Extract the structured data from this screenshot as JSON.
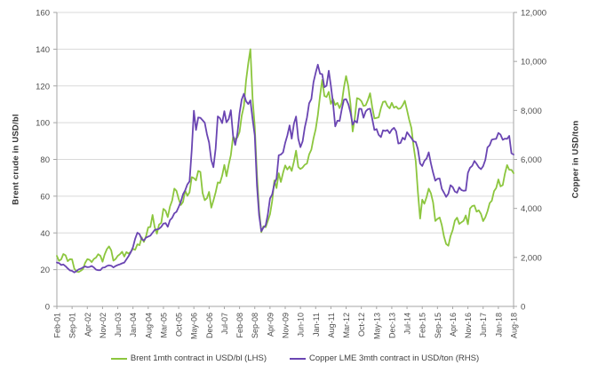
{
  "chart_data": {
    "type": "line",
    "title": "",
    "x_freq": "monthly",
    "x_start": "Feb-01",
    "x_end": "Aug-18",
    "x_tick_every": 7,
    "x_tick_labels": [
      "Feb-01",
      "Sep-01",
      "Apr-02",
      "Nov-02",
      "Jun-03",
      "Jan-04",
      "Aug-04",
      "Mar-05",
      "Oct-05",
      "May-06",
      "Dec-06",
      "Jul-07",
      "Feb-08",
      "Sep-08",
      "Apr-09",
      "Nov-09",
      "Jun-10",
      "Jan-11",
      "Aug-11",
      "Mar-12",
      "Oct-12",
      "May-13",
      "Dec-13",
      "Jul-14",
      "Feb-15",
      "Sep-15",
      "Apr-16",
      "Nov-16",
      "Jun-17",
      "Jan-18",
      "Aug-18"
    ],
    "grid": true,
    "legend_position": "bottom",
    "left_axis": {
      "label": "Brent crude in USD/bl",
      "min": 0,
      "max": 160,
      "tick_step": 20,
      "tick_labels": [
        "0",
        "20",
        "40",
        "60",
        "80",
        "100",
        "120",
        "140",
        "160"
      ]
    },
    "right_axis": {
      "label": "Copper in USD/ton",
      "min": 0,
      "max": 12000,
      "tick_step": 2000,
      "tick_labels": [
        "0",
        "2,000",
        "4,000",
        "6,000",
        "8,000",
        "10,000",
        "12,000"
      ]
    },
    "series": [
      {
        "name": "Brent 1mth contract in USD/bl (LHS)",
        "axis": "left",
        "color": "#8cc63e",
        "values": [
          27.5,
          24.8,
          25.6,
          28.5,
          27.8,
          24.6,
          25.7,
          25.6,
          20.6,
          19.0,
          18.7,
          19.4,
          20.3,
          23.7,
          25.7,
          25.4,
          24.1,
          25.8,
          26.6,
          28.4,
          27.5,
          24.3,
          28.3,
          31.2,
          32.7,
          30.5,
          24.9,
          25.8,
          27.5,
          28.4,
          29.8,
          27.1,
          29.6,
          28.7,
          29.8,
          31.3,
          30.8,
          33.8,
          33.3,
          37.6,
          35.1,
          38.3,
          43.0,
          43.2,
          49.8,
          43.1,
          39.6,
          44.5,
          45.5,
          53.1,
          52.0,
          48.6,
          54.4,
          57.5,
          64.1,
          62.9,
          58.5,
          55.2,
          56.9,
          63.1,
          60.2,
          62.1,
          70.4,
          69.8,
          68.6,
          73.7,
          73.2,
          61.7,
          57.8,
          58.9,
          62.3,
          53.7,
          57.6,
          62.1,
          67.5,
          67.2,
          71.1,
          77.0,
          70.8,
          77.2,
          82.3,
          92.4,
          90.9,
          92.0,
          95.0,
          103.7,
          109.1,
          122.8,
          132.3,
          140.0,
          113.0,
          98.1,
          71.9,
          52.5,
          40.4,
          43.6,
          43.1,
          46.5,
          50.2,
          57.3,
          68.6,
          64.4,
          72.5,
          67.7,
          72.8,
          76.7,
          74.5,
          76.2,
          73.7,
          78.8,
          84.8,
          75.9,
          74.8,
          75.6,
          77.1,
          77.8,
          82.7,
          85.3,
          91.4,
          96.5,
          104.0,
          114.6,
          123.3,
          114.5,
          114.0,
          116.8,
          110.2,
          112.8,
          109.6,
          110.8,
          107.9,
          110.7,
          119.3,
          125.4,
          119.8,
          110.3,
          95.2,
          102.6,
          113.4,
          112.9,
          111.7,
          109.1,
          109.5,
          112.3,
          116.0,
          108.5,
          102.3,
          102.6,
          102.9,
          107.9,
          111.3,
          111.6,
          109.1,
          107.8,
          110.8,
          108.1,
          108.8,
          107.5,
          107.8,
          109.5,
          111.9,
          106.8,
          101.6,
          97.1,
          87.4,
          79.0,
          62.3,
          47.8,
          58.1,
          55.9,
          59.5,
          64.1,
          61.5,
          56.6,
          46.5,
          47.6,
          48.4,
          44.3,
          38.0,
          34.0,
          33.0,
          38.2,
          41.6,
          46.7,
          48.3,
          44.9,
          45.8,
          46.6,
          49.5,
          44.7,
          53.3,
          54.6,
          54.9,
          51.6,
          52.3,
          50.3,
          46.4,
          48.5,
          51.7,
          56.2,
          57.5,
          62.7,
          64.4,
          69.1,
          65.3,
          66.0,
          72.1,
          76.9,
          74.4,
          74.3,
          72.5
        ]
      },
      {
        "name": "Copper LME 3mth contract in USD/ton (RHS)",
        "axis": "right",
        "color": "#6a45b2",
        "values": [
          1790,
          1770,
          1690,
          1710,
          1640,
          1550,
          1470,
          1450,
          1390,
          1440,
          1510,
          1540,
          1590,
          1630,
          1600,
          1610,
          1650,
          1590,
          1500,
          1480,
          1480,
          1580,
          1590,
          1650,
          1680,
          1660,
          1590,
          1650,
          1690,
          1720,
          1760,
          1790,
          1920,
          2060,
          2210,
          2420,
          2760,
          3010,
          2950,
          2740,
          2690,
          2810,
          2850,
          2890,
          3010,
          3120,
          3140,
          3170,
          3250,
          3380,
          3400,
          3250,
          3520,
          3610,
          3800,
          3860,
          4060,
          4270,
          4580,
          4740,
          4980,
          5100,
          6390,
          7990,
          7200,
          7710,
          7700,
          7600,
          7500,
          7030,
          6690,
          5970,
          5680,
          6450,
          7760,
          7680,
          7480,
          7970,
          7510,
          7650,
          8010,
          6970,
          6590,
          7060,
          7890,
          8440,
          8680,
          8380,
          8260,
          8410,
          7640,
          6990,
          4930,
          3720,
          3070,
          3220,
          3310,
          3750,
          4410,
          4570,
          5010,
          5220,
          6170,
          6200,
          6290,
          6680,
          6980,
          7390,
          6850,
          7460,
          7750,
          6840,
          6500,
          6740,
          7300,
          7710,
          8290,
          8460,
          9150,
          9540,
          9870,
          9500,
          9480,
          8950,
          9010,
          9620,
          9000,
          8300,
          7350,
          7580,
          7570,
          8040,
          8440,
          8460,
          8260,
          7920,
          7420,
          7580,
          7500,
          8070,
          8060,
          7700,
          7960,
          8050,
          8070,
          7660,
          7200,
          7240,
          7000,
          6910,
          7190,
          7160,
          7200,
          7070,
          7210,
          7290,
          7150,
          6650,
          6670,
          6890,
          6810,
          7110,
          6990,
          6870,
          6740,
          6710,
          6420,
          5830,
          5730,
          5940,
          6040,
          6290,
          5830,
          5460,
          5130,
          5210,
          5220,
          4800,
          4640,
          4470,
          4600,
          4950,
          4870,
          4690,
          4640,
          4860,
          4750,
          4720,
          4730,
          5450,
          5660,
          5740,
          5940,
          5820,
          5680,
          5600,
          5720,
          5980,
          6490,
          6580,
          6810,
          6830,
          6840,
          7080,
          7010,
          6800,
          6850,
          6840,
          6960,
          6250,
          6200
        ]
      }
    ],
    "style": {
      "grid_color": "#d9d9d9",
      "axis_color": "#a6a6a6",
      "tick_text_color": "#4d4d4d",
      "line_width": 1.8
    }
  }
}
